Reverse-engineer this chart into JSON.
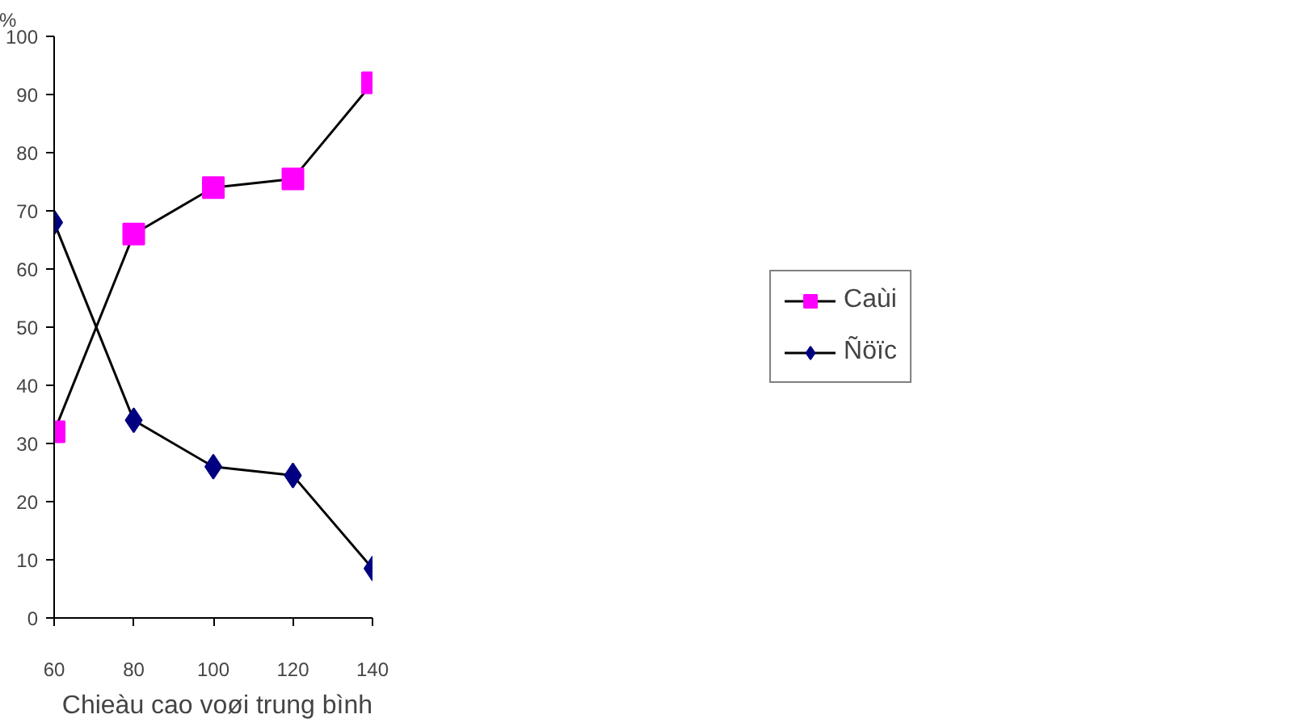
{
  "chart_data": {
    "type": "line",
    "x": [
      60,
      80,
      100,
      120,
      140
    ],
    "xlim": [
      60,
      140
    ],
    "xticks": [
      60,
      80,
      100,
      120,
      140
    ],
    "ylim": [
      0,
      100
    ],
    "yticks": [
      0,
      10,
      20,
      30,
      40,
      50,
      60,
      70,
      80,
      90,
      100
    ],
    "ylabel": "%",
    "xlabel": "Chieàu cao voøi trung bình",
    "grid": false,
    "legend": "right",
    "series": [
      {
        "name": "Caùi",
        "color": "#ff00ff",
        "marker": "square",
        "values": [
          32,
          66,
          74,
          75.5,
          92
        ]
      },
      {
        "name": "Ñöïc",
        "color": "#000080",
        "marker": "diamond",
        "values": [
          68,
          34,
          26,
          24.5,
          8.5
        ]
      }
    ]
  }
}
